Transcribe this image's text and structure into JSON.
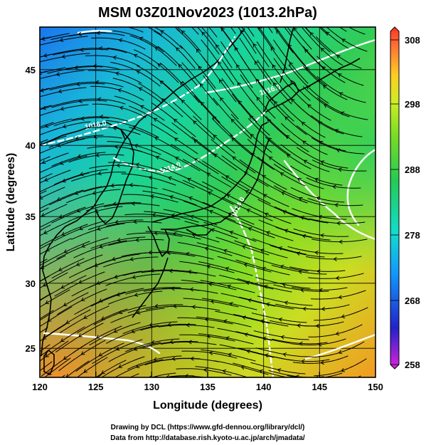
{
  "title": "MSM 03Z01Nov2023 (1013.2hPa)",
  "xaxis": {
    "label": "Longitude (degrees)",
    "ticks": [
      "120",
      "125",
      "130",
      "135",
      "140",
      "145",
      "150"
    ],
    "range": [
      120,
      150
    ]
  },
  "yaxis": {
    "label": "Latitude  (degrees)",
    "ticks": [
      "25",
      "30",
      "35",
      "40",
      "45"
    ],
    "range": [
      22.4,
      47.6
    ]
  },
  "colorbar": {
    "ticks": [
      "308",
      "298",
      "288",
      "278",
      "268",
      "258"
    ],
    "range": [
      258,
      308
    ],
    "colors": [
      "#dd22dd",
      "#2222cc",
      "#1199ff",
      "#11ddcc",
      "#22cc55",
      "#77dd22",
      "#ccee22",
      "#ffcc22",
      "#ff7733",
      "#ff3322"
    ]
  },
  "isobars": [
    {
      "label": "1016.0"
    },
    {
      "label": "1016.0"
    },
    {
      "label": "1014.0"
    },
    {
      "label": "1014.0"
    }
  ],
  "credit_lines": [
    "Drawing by DCL (https://www.gfd-dennou.org/library/dcl/)",
    "Data from http://database.rish.kyoto-u.ac.jp/arch/jmadata/"
  ]
}
